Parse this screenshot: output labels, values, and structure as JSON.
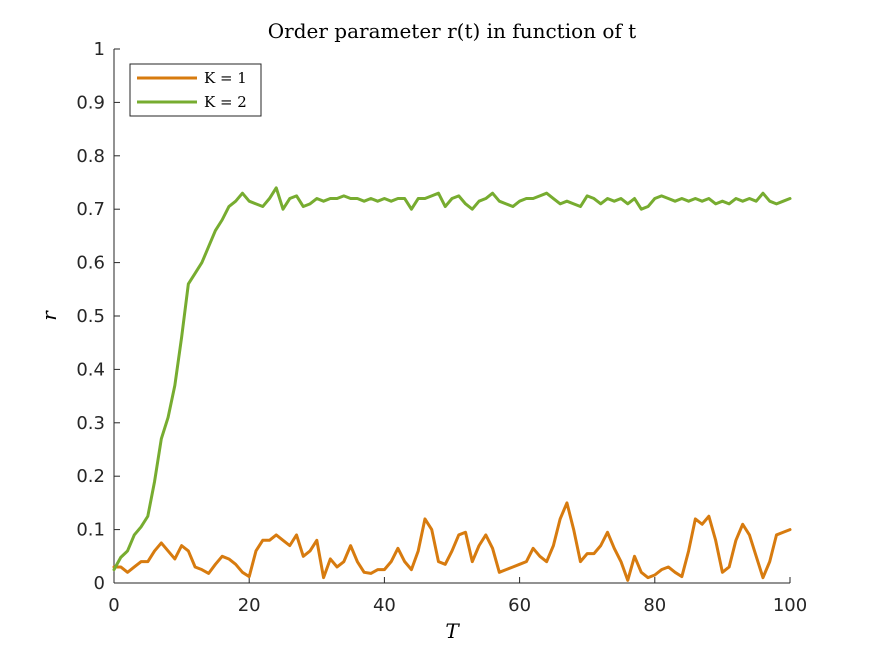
{
  "chart_data": {
    "type": "line",
    "title": "Order parameter r(t) in function of t",
    "xlabel": "T",
    "ylabel": "r",
    "xlim": [
      0,
      100
    ],
    "ylim": [
      0,
      1
    ],
    "xticks": [
      0,
      20,
      40,
      60,
      80,
      100
    ],
    "yticks": [
      0,
      0.1,
      0.2,
      0.3,
      0.4,
      0.5,
      0.6,
      0.7,
      0.8,
      0.9,
      1
    ],
    "xtick_labels": [
      "0",
      "20",
      "40",
      "60",
      "80",
      "100"
    ],
    "ytick_labels": [
      "0",
      "0.1",
      "0.2",
      "0.3",
      "0.4",
      "0.5",
      "0.6",
      "0.7",
      "0.8",
      "0.9",
      "1"
    ],
    "grid": false,
    "legend_position": "top-left",
    "series": [
      {
        "name": "K = 1",
        "color": "#D77B0F",
        "x": [
          0,
          1,
          2,
          3,
          4,
          5,
          6,
          7,
          8,
          9,
          10,
          11,
          12,
          13,
          14,
          15,
          16,
          17,
          18,
          19,
          20,
          21,
          22,
          23,
          24,
          25,
          26,
          27,
          28,
          29,
          30,
          31,
          32,
          33,
          34,
          35,
          36,
          37,
          38,
          39,
          40,
          41,
          42,
          43,
          44,
          45,
          46,
          47,
          48,
          49,
          50,
          51,
          52,
          53,
          54,
          55,
          56,
          57,
          58,
          59,
          60,
          61,
          62,
          63,
          64,
          65,
          66,
          67,
          68,
          69,
          70,
          71,
          72,
          73,
          74,
          75,
          76,
          77,
          78,
          79,
          80,
          81,
          82,
          83,
          84,
          85,
          86,
          87,
          88,
          89,
          90,
          91,
          92,
          93,
          94,
          95,
          96,
          97,
          98,
          99,
          100
        ],
        "y": [
          0.03,
          0.03,
          0.02,
          0.03,
          0.04,
          0.04,
          0.06,
          0.075,
          0.06,
          0.045,
          0.07,
          0.06,
          0.03,
          0.025,
          0.018,
          0.035,
          0.05,
          0.045,
          0.035,
          0.02,
          0.012,
          0.06,
          0.08,
          0.08,
          0.09,
          0.08,
          0.07,
          0.09,
          0.05,
          0.06,
          0.08,
          0.01,
          0.045,
          0.03,
          0.04,
          0.07,
          0.04,
          0.02,
          0.018,
          0.025,
          0.025,
          0.04,
          0.065,
          0.04,
          0.025,
          0.06,
          0.12,
          0.1,
          0.04,
          0.035,
          0.06,
          0.09,
          0.095,
          0.04,
          0.07,
          0.09,
          0.065,
          0.02,
          0.025,
          0.03,
          0.035,
          0.04,
          0.065,
          0.05,
          0.04,
          0.07,
          0.12,
          0.15,
          0.1,
          0.04,
          0.055,
          0.055,
          0.07,
          0.095,
          0.065,
          0.04,
          0.005,
          0.05,
          0.02,
          0.01,
          0.015,
          0.025,
          0.03,
          0.02,
          0.012,
          0.06,
          0.12,
          0.11,
          0.125,
          0.08,
          0.02,
          0.03,
          0.08,
          0.11,
          0.09,
          0.05,
          0.01,
          0.04,
          0.09,
          0.095,
          0.1
        ]
      },
      {
        "name": "K = 2",
        "color": "#77AC30",
        "x": [
          0,
          1,
          2,
          3,
          4,
          5,
          6,
          7,
          8,
          9,
          10,
          11,
          12,
          13,
          14,
          15,
          16,
          17,
          18,
          19,
          20,
          21,
          22,
          23,
          24,
          25,
          26,
          27,
          28,
          29,
          30,
          31,
          32,
          33,
          34,
          35,
          36,
          37,
          38,
          39,
          40,
          41,
          42,
          43,
          44,
          45,
          46,
          47,
          48,
          49,
          50,
          51,
          52,
          53,
          54,
          55,
          56,
          57,
          58,
          59,
          60,
          61,
          62,
          63,
          64,
          65,
          66,
          67,
          68,
          69,
          70,
          71,
          72,
          73,
          74,
          75,
          76,
          77,
          78,
          79,
          80,
          81,
          82,
          83,
          84,
          85,
          86,
          87,
          88,
          89,
          90,
          91,
          92,
          93,
          94,
          95,
          96,
          97,
          98,
          99,
          100
        ],
        "y": [
          0.025,
          0.048,
          0.06,
          0.09,
          0.105,
          0.125,
          0.19,
          0.27,
          0.31,
          0.37,
          0.46,
          0.56,
          0.58,
          0.6,
          0.63,
          0.66,
          0.68,
          0.705,
          0.715,
          0.73,
          0.715,
          0.71,
          0.705,
          0.72,
          0.74,
          0.7,
          0.72,
          0.725,
          0.705,
          0.71,
          0.72,
          0.715,
          0.72,
          0.72,
          0.725,
          0.72,
          0.72,
          0.715,
          0.72,
          0.715,
          0.72,
          0.715,
          0.72,
          0.72,
          0.7,
          0.72,
          0.72,
          0.725,
          0.73,
          0.705,
          0.72,
          0.725,
          0.71,
          0.7,
          0.715,
          0.72,
          0.73,
          0.715,
          0.71,
          0.705,
          0.715,
          0.72,
          0.72,
          0.725,
          0.73,
          0.72,
          0.71,
          0.715,
          0.71,
          0.705,
          0.725,
          0.72,
          0.71,
          0.72,
          0.715,
          0.72,
          0.71,
          0.72,
          0.7,
          0.705,
          0.72,
          0.725,
          0.72,
          0.715,
          0.72,
          0.715,
          0.72,
          0.715,
          0.72,
          0.71,
          0.715,
          0.71,
          0.72,
          0.715,
          0.72,
          0.715,
          0.73,
          0.715,
          0.71,
          0.715,
          0.72
        ]
      }
    ]
  }
}
